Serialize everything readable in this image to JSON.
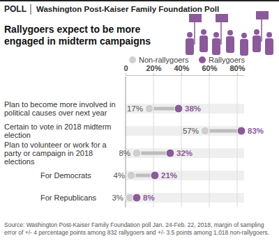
{
  "chart_data": {
    "type": "dot",
    "orientation": "horizontal",
    "badge": "POLL",
    "header": "Washington Post-Kaiser Family Foundation Poll",
    "title": "Rallygoers expect to be more engaged in midterm campaigns",
    "categories": [
      "Plan to become more involved in political causes over next year",
      "Certain to vote in 2018 midterm election",
      "Plan to volunteer or work for a party or campaign in 2018 elections",
      "For Democrats",
      "For Republicans"
    ],
    "series": [
      {
        "name": "Non-rallygoers",
        "color": "#cfcfcf",
        "values": [
          17,
          57,
          8,
          4,
          3
        ],
        "value_labels": [
          "17%",
          "57%",
          "8%",
          "4%",
          "3%"
        ]
      },
      {
        "name": "Rallygoers",
        "color": "#8b5a9a",
        "values": [
          38,
          83,
          32,
          21,
          8
        ],
        "value_labels": [
          "38%",
          "83%",
          "32%",
          "21%",
          "8%"
        ]
      }
    ],
    "xlim": [
      0,
      85
    ],
    "xticks": [
      0,
      {
        "value": 20,
        "label": "20%"
      },
      {
        "value": 40,
        "label": "40%"
      },
      {
        "value": 60,
        "label": "60%"
      },
      {
        "value": 80,
        "label": "80%"
      }
    ],
    "grid": true,
    "legend": "top",
    "data_labels": true,
    "source": "Source: Washington Post-Kaiser Family Foundation poll Jan. 24-Feb. 22, 2018, margin of sampling error of +/- 4 percentage points among 832 rallygoers and +/- 3.5 points among 1,018 non-rallygoers."
  }
}
